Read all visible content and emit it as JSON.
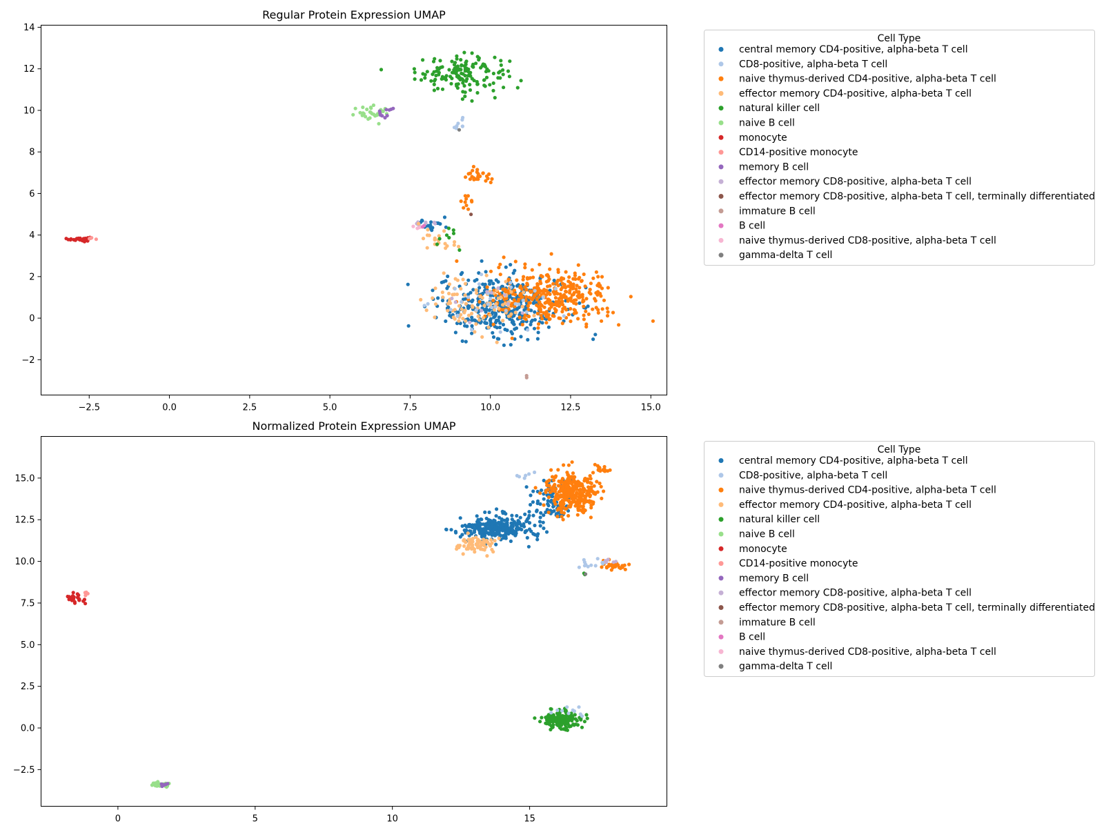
{
  "legend": {
    "title": "Cell Type",
    "entries": [
      {
        "label": "central memory CD4-positive, alpha-beta T cell",
        "color": "#1f77b4"
      },
      {
        "label": "CD8-positive, alpha-beta T cell",
        "color": "#aec7e8"
      },
      {
        "label": "naive thymus-derived CD4-positive, alpha-beta T cell",
        "color": "#ff7f0e"
      },
      {
        "label": "effector memory CD4-positive, alpha-beta T cell",
        "color": "#ffbb78"
      },
      {
        "label": "natural killer cell",
        "color": "#2ca02c"
      },
      {
        "label": "naive B cell",
        "color": "#98df8a"
      },
      {
        "label": "monocyte",
        "color": "#d62728"
      },
      {
        "label": "CD14-positive monocyte",
        "color": "#ff9896"
      },
      {
        "label": "memory B cell",
        "color": "#9467bd"
      },
      {
        "label": "effector memory CD8-positive, alpha-beta T cell",
        "color": "#c5b0d5"
      },
      {
        "label": "effector memory CD8-positive, alpha-beta T cell, terminally differentiated",
        "color": "#8c564b"
      },
      {
        "label": "immature B cell",
        "color": "#c49c94"
      },
      {
        "label": "B cell",
        "color": "#e377c2"
      },
      {
        "label": "naive thymus-derived CD8-positive, alpha-beta T cell",
        "color": "#f7b6d2"
      },
      {
        "label": "gamma-delta T cell",
        "color": "#7f7f7f"
      }
    ]
  },
  "chart_data": [
    {
      "type": "scatter",
      "title": "Regular Protein Expression UMAP",
      "xlabel": "",
      "ylabel": "",
      "xlim": [
        -4.0,
        15.5
      ],
      "ylim": [
        -3.7,
        14.1
      ],
      "xticks": [
        -2.5,
        0.0,
        2.5,
        5.0,
        7.5,
        10.0,
        12.5,
        15.0
      ],
      "xtick_labels": [
        "−2.5",
        "0.0",
        "2.5",
        "5.0",
        "7.5",
        "10.0",
        "12.5",
        "15.0"
      ],
      "yticks": [
        -2,
        0,
        2,
        4,
        6,
        8,
        10,
        12,
        14
      ],
      "ytick_labels": [
        "−2",
        "0",
        "2",
        "4",
        "6",
        "8",
        "10",
        "12",
        "14"
      ],
      "grid": false,
      "legend_position": "outside-right",
      "clusters": [
        {
          "category": 6,
          "center": [
            -2.8,
            3.8
          ],
          "spread": [
            0.3,
            0.1
          ],
          "n": 26
        },
        {
          "category": 7,
          "center": [
            -2.4,
            3.85
          ],
          "spread": [
            0.15,
            0.07
          ],
          "n": 5
        },
        {
          "category": 4,
          "center": [
            9.1,
            11.8
          ],
          "spread": [
            1.3,
            0.8
          ],
          "n": 150
        },
        {
          "category": 5,
          "center": [
            6.4,
            9.8
          ],
          "spread": [
            0.6,
            0.35
          ],
          "n": 30
        },
        {
          "category": 8,
          "center": [
            6.7,
            9.9
          ],
          "spread": [
            0.4,
            0.2
          ],
          "n": 10
        },
        {
          "category": 1,
          "center": [
            9.0,
            9.4
          ],
          "spread": [
            0.2,
            0.3
          ],
          "n": 8
        },
        {
          "category": 2,
          "center": [
            9.6,
            6.8
          ],
          "spread": [
            0.4,
            0.3
          ],
          "n": 25
        },
        {
          "category": 2,
          "center": [
            9.3,
            5.6
          ],
          "spread": [
            0.25,
            0.4
          ],
          "n": 10
        },
        {
          "category": 0,
          "center": [
            8.2,
            4.5
          ],
          "spread": [
            0.4,
            0.3
          ],
          "n": 20
        },
        {
          "category": 9,
          "center": [
            7.9,
            4.6
          ],
          "spread": [
            0.3,
            0.2
          ],
          "n": 8
        },
        {
          "category": 3,
          "center": [
            8.5,
            3.8
          ],
          "spread": [
            0.7,
            0.5
          ],
          "n": 20
        },
        {
          "category": 0,
          "center": [
            10.3,
            0.6
          ],
          "spread": [
            1.8,
            1.4
          ],
          "n": 380
        },
        {
          "category": 2,
          "center": [
            11.9,
            1.0
          ],
          "spread": [
            1.7,
            1.2
          ],
          "n": 360
        },
        {
          "category": 3,
          "center": [
            9.5,
            0.8
          ],
          "spread": [
            1.6,
            1.3
          ],
          "n": 90
        },
        {
          "category": 1,
          "center": [
            10.2,
            0.8
          ],
          "spread": [
            1.8,
            1.2
          ],
          "n": 30
        },
        {
          "category": 9,
          "center": [
            10.0,
            1.0
          ],
          "spread": [
            1.5,
            1.0
          ],
          "n": 10
        },
        {
          "category": 4,
          "center": [
            8.6,
            3.7
          ],
          "spread": [
            0.6,
            0.5
          ],
          "n": 8
        },
        {
          "category": 10,
          "center": [
            9.4,
            5.0
          ],
          "spread": [
            0.05,
            0.05
          ],
          "n": 1
        },
        {
          "category": 11,
          "center": [
            11.1,
            -2.8
          ],
          "spread": [
            0.1,
            0.05
          ],
          "n": 2
        },
        {
          "category": 12,
          "center": [
            7.9,
            4.4
          ],
          "spread": [
            0.2,
            0.1
          ],
          "n": 2
        },
        {
          "category": 13,
          "center": [
            7.6,
            4.3
          ],
          "spread": [
            0.2,
            0.1
          ],
          "n": 3
        },
        {
          "category": 14,
          "center": [
            9.0,
            9.1
          ],
          "spread": [
            0.05,
            0.05
          ],
          "n": 1
        }
      ]
    },
    {
      "type": "scatter",
      "title": "Normalized Protein Expression UMAP",
      "xlabel": "",
      "ylabel": "",
      "xlim": [
        -2.8,
        20.0
      ],
      "ylim": [
        -4.7,
        17.5
      ],
      "xticks": [
        0,
        5,
        10,
        15
      ],
      "xtick_labels": [
        "0",
        "5",
        "10",
        "15"
      ],
      "yticks": [
        -2.5,
        0.0,
        2.5,
        5.0,
        7.5,
        10.0,
        12.5,
        15.0
      ],
      "ytick_labels": [
        "−2.5",
        "0.0",
        "2.5",
        "5.0",
        "7.5",
        "10.0",
        "12.5",
        "15.0"
      ],
      "grid": false,
      "legend_position": "outside-right",
      "clusters": [
        {
          "category": 6,
          "center": [
            -1.5,
            7.8
          ],
          "spread": [
            0.3,
            0.3
          ],
          "n": 25
        },
        {
          "category": 7,
          "center": [
            -1.2,
            8.1
          ],
          "spread": [
            0.1,
            0.1
          ],
          "n": 4
        },
        {
          "category": 5,
          "center": [
            1.5,
            -3.4
          ],
          "spread": [
            0.3,
            0.12
          ],
          "n": 35
        },
        {
          "category": 8,
          "center": [
            1.7,
            -3.4
          ],
          "spread": [
            0.2,
            0.1
          ],
          "n": 10
        },
        {
          "category": 4,
          "center": [
            16.2,
            0.5
          ],
          "spread": [
            0.6,
            0.5
          ],
          "n": 150
        },
        {
          "category": 1,
          "center": [
            16.5,
            1.0
          ],
          "spread": [
            0.6,
            0.3
          ],
          "n": 10
        },
        {
          "category": 0,
          "center": [
            13.8,
            12.0
          ],
          "spread": [
            1.2,
            0.7
          ],
          "n": 280
        },
        {
          "category": 0,
          "center": [
            15.8,
            13.5
          ],
          "spread": [
            0.8,
            1.2
          ],
          "n": 80
        },
        {
          "category": 2,
          "center": [
            16.5,
            14.2
          ],
          "spread": [
            0.8,
            1.1
          ],
          "n": 330
        },
        {
          "category": 3,
          "center": [
            13.0,
            11.0
          ],
          "spread": [
            0.7,
            0.5
          ],
          "n": 70
        },
        {
          "category": 2,
          "center": [
            18.0,
            9.8
          ],
          "spread": [
            0.5,
            0.3
          ],
          "n": 30
        },
        {
          "category": 1,
          "center": [
            17.3,
            9.8
          ],
          "spread": [
            0.5,
            0.3
          ],
          "n": 12
        },
        {
          "category": 9,
          "center": [
            17.8,
            10.0
          ],
          "spread": [
            0.4,
            0.2
          ],
          "n": 5
        },
        {
          "category": 2,
          "center": [
            17.7,
            15.5
          ],
          "spread": [
            0.3,
            0.2
          ],
          "n": 15
        },
        {
          "category": 1,
          "center": [
            14.8,
            15.2
          ],
          "spread": [
            0.5,
            0.3
          ],
          "n": 6
        },
        {
          "category": 4,
          "center": [
            17.0,
            9.3
          ],
          "spread": [
            0.1,
            0.1
          ],
          "n": 2
        },
        {
          "category": 14,
          "center": [
            17.0,
            9.2
          ],
          "spread": [
            0.05,
            0.05
          ],
          "n": 1
        }
      ]
    }
  ]
}
